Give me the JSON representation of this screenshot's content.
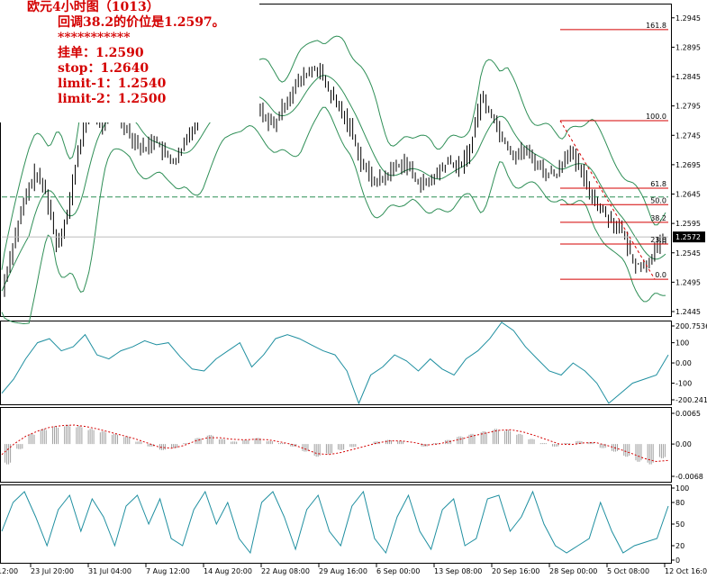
{
  "annotation": {
    "line1": "欧元4小时图（1013）",
    "line2": "回调38.2的价位是1.2597。",
    "line3": "***********",
    "line4": "挂单：1.2590",
    "line5": "stop：1.2640",
    "line6": "limit-1：1.2540",
    "line7": "limit-2：1.2500"
  },
  "chart_data": [
    {
      "type": "line",
      "panel": "price",
      "subtype": "bar-ohlc with Bollinger bands",
      "y_axis_ticks": [
        "1.2945",
        "1.2895",
        "1.2845",
        "1.2795",
        "1.2745",
        "1.2695",
        "1.2645",
        "1.2595",
        "1.2545",
        "1.2495",
        "1.2445"
      ],
      "ylim": [
        1.2445,
        1.296
      ],
      "top_left_price": "1.2572",
      "current_price": "1.2572",
      "x_tick_labels": [
        "12:00",
        "23 Jul 20:00",
        "31 Jul 04:00",
        "7 Aug 12:00",
        "14 Aug 20:00",
        "22 Aug 08:00",
        "29 Aug 16:00",
        "6 Sep 00:00",
        "13 Sep 08:00",
        "20 Sep 16:00",
        "28 Sep 00:00",
        "5 Oct 08:00",
        "12 Oct 16:00"
      ],
      "price_path": [
        1.248,
        1.256,
        1.263,
        1.268,
        1.265,
        1.256,
        1.261,
        1.272,
        1.279,
        1.276,
        1.28,
        1.277,
        1.274,
        1.272,
        1.274,
        1.271,
        1.27,
        1.274,
        1.278,
        1.279,
        1.28,
        1.281,
        1.283,
        1.28,
        1.278,
        1.276,
        1.28,
        1.283,
        1.285,
        1.286,
        1.282,
        1.279,
        1.276,
        1.27,
        1.267,
        1.267,
        1.269,
        1.27,
        1.267,
        1.266,
        1.268,
        1.27,
        1.269,
        1.272,
        1.281,
        1.278,
        1.274,
        1.271,
        1.272,
        1.27,
        1.268,
        1.268,
        1.272,
        1.269,
        1.265,
        1.262,
        1.26,
        1.258,
        1.253,
        1.252,
        1.255,
        1.257
      ],
      "horizontal_dashed_level": 1.264,
      "fibonacci": {
        "levels": [
          {
            "label": "161.8",
            "price": 1.2925
          },
          {
            "label": "100.0",
            "price": 1.277
          },
          {
            "label": "61.8",
            "price": 1.2655
          },
          {
            "label": "50.0",
            "price": 1.2627
          },
          {
            "label": "38.2",
            "price": 1.2597
          },
          {
            "label": "23.6",
            "price": 1.256
          },
          {
            "label": "0.0",
            "price": 1.25
          }
        ]
      },
      "colors": {
        "bars": "#000000",
        "bands": "#2f8f57",
        "levels": "#d40000",
        "annotation": "#d40000"
      }
    },
    {
      "type": "line",
      "panel": "oscillator-1",
      "y_axis_ticks": [
        "200.7536",
        "100",
        "0.00",
        "-100",
        "-200.241"
      ],
      "ylim": [
        -200.241,
        200.7536
      ],
      "values": [
        -150,
        -80,
        20,
        100,
        120,
        60,
        80,
        140,
        40,
        20,
        60,
        80,
        110,
        90,
        100,
        30,
        -30,
        -40,
        20,
        60,
        100,
        -20,
        40,
        120,
        140,
        120,
        90,
        60,
        40,
        -40,
        -220,
        -60,
        -20,
        40,
        10,
        -40,
        20,
        -30,
        -60,
        20,
        60,
        120,
        220,
        160,
        80,
        20,
        -40,
        -60,
        0,
        -40,
        -100,
        -200,
        -150,
        -100,
        -80,
        -60,
        40
      ],
      "color": "#1f8fa0"
    },
    {
      "type": "bar",
      "panel": "oscillator-2",
      "y_axis_ticks": [
        "0.0065",
        "0.00",
        "-0.0068"
      ],
      "ylim": [
        -0.0068,
        0.0065
      ],
      "histogram": [
        -0.004,
        -0.001,
        0.002,
        0.003,
        0.0035,
        0.0038,
        0.0036,
        0.003,
        0.0025,
        0.002,
        0.0015,
        0.0005,
        -0.0005,
        -0.0012,
        -0.0008,
        0.0002,
        0.0012,
        0.0018,
        0.001,
        0.0005,
        0.0008,
        0.0012,
        0.0006,
        0.0002,
        -0.0005,
        -0.0015,
        -0.0025,
        -0.002,
        -0.0012,
        -0.0006,
        0.0,
        0.0005,
        0.0008,
        0.0006,
        0.0,
        -0.0005,
        0.0002,
        0.0008,
        0.0015,
        0.002,
        0.0025,
        0.003,
        0.0028,
        0.002,
        0.001,
        0.0002,
        -0.0005,
        0.0002,
        0.0006,
        0.0004,
        -0.0008,
        -0.0015,
        -0.0025,
        -0.0035,
        -0.004,
        -0.0028
      ],
      "signal": [
        -0.002,
        0.0,
        0.0015,
        0.0025,
        0.0032,
        0.0035,
        0.0036,
        0.0033,
        0.0028,
        0.0022,
        0.0016,
        0.001,
        0.0002,
        -0.0006,
        -0.0008,
        -0.0003,
        0.0006,
        0.0012,
        0.0012,
        0.0009,
        0.0008,
        0.0009,
        0.0008,
        0.0004,
        -0.0001,
        -0.0009,
        -0.0018,
        -0.002,
        -0.0016,
        -0.001,
        -0.0004,
        0.0002,
        0.0006,
        0.0006,
        0.0003,
        -0.0002,
        0.0,
        0.0005,
        0.001,
        0.0016,
        0.0021,
        0.0026,
        0.0027,
        0.0023,
        0.0016,
        0.0008,
        0.0,
        -0.0001,
        0.0002,
        0.0003,
        -0.0003,
        -0.001,
        -0.0018,
        -0.0027,
        -0.0033,
        -0.0031
      ],
      "colors": {
        "histogram": "#a0a0a0",
        "signal": "#d40000"
      }
    },
    {
      "type": "line",
      "panel": "oscillator-3",
      "y_axis_ticks": [
        "100",
        "80",
        "50",
        "20",
        "0"
      ],
      "ylim": [
        0,
        100
      ],
      "values": [
        40,
        80,
        95,
        60,
        20,
        70,
        90,
        40,
        85,
        60,
        20,
        75,
        90,
        50,
        85,
        30,
        20,
        70,
        95,
        50,
        80,
        30,
        10,
        80,
        95,
        60,
        15,
        70,
        90,
        40,
        20,
        75,
        95,
        30,
        10,
        60,
        90,
        40,
        15,
        70,
        85,
        20,
        30,
        85,
        90,
        40,
        60,
        95,
        50,
        20,
        10,
        20,
        30,
        80,
        40,
        10,
        20,
        25,
        30,
        75
      ],
      "color": "#1f8fa0"
    }
  ]
}
